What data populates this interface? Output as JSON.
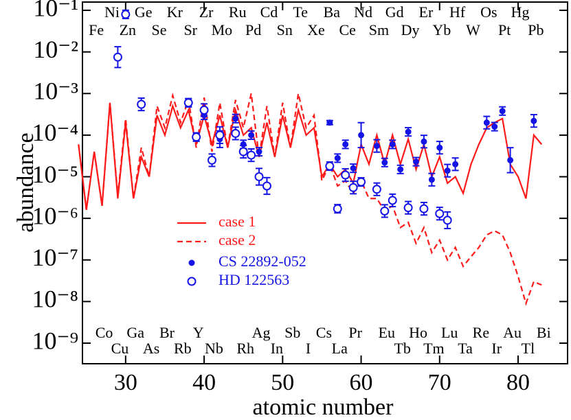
{
  "chart_data": {
    "type": "scatter-line",
    "xlabel": "atomic number",
    "ylabel": "abundance",
    "log_y": true,
    "xlim": [
      24.5,
      86.3
    ],
    "xticks": [
      30,
      40,
      50,
      60,
      70,
      80
    ],
    "ylim": [
      3.2e-10,
      0.158
    ],
    "yticks": [
      {
        "value": 1e-09,
        "label": "10⁻⁹"
      },
      {
        "value": 1e-08,
        "label": "10⁻⁸"
      },
      {
        "value": 1e-07,
        "label": "10⁻⁷"
      },
      {
        "value": 1e-06,
        "label": "10⁻⁶"
      },
      {
        "value": 1e-05,
        "label": "10⁻⁵"
      },
      {
        "value": 0.0001,
        "label": "10⁻⁴"
      },
      {
        "value": 0.001,
        "label": "10⁻³"
      },
      {
        "value": 0.01,
        "label": "10⁻²"
      },
      {
        "value": 0.1,
        "label": "10⁻¹"
      }
    ],
    "legend_position": "center-left",
    "element_labels": {
      "top_1": [
        "Ni",
        "Ge",
        "Kr",
        "Zr",
        "Ru",
        "Cd",
        "Te",
        "Ba",
        "Nd",
        "Gd",
        "Er",
        "Hf",
        "Os",
        "Hg"
      ],
      "top_2": [
        "Fe",
        "Zn",
        "Se",
        "Sr",
        "Mo",
        "Pd",
        "Sn",
        "Xe",
        "Ce",
        "Sm",
        "Dy",
        "Yb",
        "W",
        "Pt",
        "Pb"
      ],
      "bottom_1": [
        "Co",
        "Ga",
        "Br",
        "Y",
        "Ag",
        "Sb",
        "Cs",
        "Pr",
        "Eu",
        "Ho",
        "Lu",
        "Re",
        "Au",
        "Bi"
      ],
      "bottom_2": [
        "Cu",
        "As",
        "Rb",
        "Nb",
        "Rh",
        "In",
        "I",
        "La",
        "Tb",
        "Tm",
        "Ta",
        "Ir",
        "Tl"
      ]
    },
    "series": [
      {
        "name": "case 1",
        "color": "#ff1a1a",
        "style": "solid",
        "x": [
          24,
          25,
          26,
          27,
          28,
          29,
          30,
          31,
          32,
          33,
          34,
          35,
          36,
          37,
          38,
          39,
          40,
          41,
          42,
          43,
          44,
          45,
          46,
          47,
          48,
          49,
          50,
          51,
          52,
          53,
          54,
          55,
          56,
          57,
          58,
          59,
          60,
          61,
          62,
          63,
          64,
          65,
          66,
          67,
          68,
          69,
          70,
          71,
          72,
          73,
          74,
          75,
          76,
          77,
          78,
          79,
          80,
          81,
          82,
          83
        ],
        "values": [
          6e-05,
          1.6e-06,
          4e-05,
          2e-06,
          0.0006,
          3e-06,
          0.0002,
          3e-06,
          3e-05,
          1e-05,
          0.0003,
          0.0001,
          0.0005,
          0.00015,
          0.0004,
          6e-05,
          0.0003,
          6e-05,
          0.0003,
          5e-05,
          0.0004,
          0.0001,
          0.00015,
          3e-05,
          0.0002,
          3e-05,
          0.0003,
          5e-05,
          0.0004,
          0.0001,
          0.00015,
          1e-05,
          2e-05,
          1e-05,
          1.5e-05,
          7e-06,
          6e-05,
          2e-05,
          0.0001,
          2e-05,
          0.0001,
          2e-05,
          8e-05,
          1.5e-05,
          6e-05,
          1e-05,
          3e-05,
          7e-06,
          1e-05,
          4e-06,
          2e-05,
          6e-05,
          0.00015,
          0.0002,
          0.00025,
          2e-05,
          1e-05,
          3e-06,
          0.0001,
          6e-05
        ]
      },
      {
        "name": "case 2",
        "color": "#ff1a1a",
        "style": "dashed",
        "x": [
          24,
          25,
          26,
          27,
          28,
          29,
          30,
          31,
          32,
          33,
          34,
          35,
          36,
          37,
          38,
          39,
          40,
          41,
          42,
          43,
          44,
          45,
          46,
          47,
          48,
          49,
          50,
          51,
          52,
          53,
          54,
          55,
          56,
          57,
          58,
          59,
          60,
          61,
          62,
          63,
          64,
          65,
          66,
          67,
          68,
          69,
          70,
          71,
          72,
          73,
          74,
          75,
          76,
          77,
          78,
          79,
          80,
          81,
          82,
          83
        ],
        "values": [
          6e-05,
          1.6e-06,
          4e-05,
          2e-06,
          0.0006,
          3.5e-06,
          0.00025,
          3e-06,
          5e-05,
          1e-05,
          0.0005,
          0.00015,
          0.0009,
          0.0002,
          0.0007,
          5e-05,
          0.0008,
          4e-05,
          0.0006,
          5e-05,
          0.0007,
          0.00015,
          0.001,
          3e-05,
          0.0005,
          3e-05,
          0.0006,
          5e-05,
          0.001,
          0.00015,
          0.0003,
          8e-06,
          2e-05,
          6e-06,
          8e-06,
          4e-06,
          8e-06,
          3e-06,
          3e-06,
          1.5e-06,
          2e-06,
          6e-07,
          8e-07,
          2.5e-07,
          6e-07,
          1.5e-07,
          3e-07,
          1e-07,
          2e-07,
          7e-08,
          1.2e-07,
          2e-07,
          4e-07,
          5e-07,
          4e-07,
          1.5e-07,
          4e-08,
          9e-09,
          3e-08,
          2.5e-08
        ]
      },
      {
        "name": "CS 22892-052",
        "color": "#1414e6",
        "marker": "filled",
        "x": [
          38,
          39,
          40,
          42,
          44,
          45,
          46,
          47,
          56,
          57,
          58,
          59,
          60,
          62,
          63,
          64,
          65,
          66,
          67,
          68,
          69,
          70,
          71,
          72,
          76,
          77,
          78,
          79,
          82
        ],
        "values": [
          0.0006,
          9e-05,
          0.0003,
          8e-05,
          0.00025,
          6e-05,
          0.0001,
          4e-05,
          0.0002,
          2.8e-05,
          6e-05,
          1.6e-05,
          0.0001,
          5.5e-05,
          2.2e-05,
          6e-05,
          1.5e-05,
          0.00012,
          2.3e-05,
          7e-05,
          8.5e-06,
          5e-05,
          1.4e-05,
          2e-05,
          0.0002,
          0.00016,
          0.00038,
          2.5e-05,
          0.00022
        ],
        "errors_dex": [
          0.1,
          0.1,
          0.1,
          0.2,
          0.1,
          0.1,
          0.1,
          0.1,
          0.05,
          0.1,
          0.1,
          0.1,
          0.3,
          0.15,
          0.1,
          0.1,
          0.1,
          0.1,
          0.1,
          0.15,
          0.15,
          0.15,
          0.15,
          0.15,
          0.15,
          0.1,
          0.1,
          0.3,
          0.15
        ]
      },
      {
        "name": "HD 122563",
        "color": "#1414e6",
        "marker": "open",
        "x": [
          29,
          30,
          32,
          38,
          39,
          40,
          41,
          42,
          44,
          45,
          46,
          47,
          48,
          56,
          57,
          58,
          59,
          60,
          62,
          63,
          64,
          66,
          68,
          70,
          71
        ],
        "values": [
          0.0075,
          0.08,
          0.00055,
          0.0006,
          9e-05,
          0.0004,
          2.5e-05,
          0.0001,
          0.00011,
          4e-05,
          3.3e-05,
          1e-05,
          6e-06,
          1.8e-05,
          1.7e-06,
          1.1e-05,
          5.5e-06,
          7.5e-06,
          5e-06,
          1.5e-06,
          2.7e-06,
          1.8e-06,
          1.7e-06,
          1.3e-06,
          9e-07
        ],
        "errors_dex": [
          0.25,
          0.1,
          0.15,
          0.1,
          0.1,
          0.15,
          0.15,
          0.2,
          0.15,
          0.15,
          0.15,
          0.2,
          0.2,
          0.1,
          0.1,
          0.15,
          0.15,
          0.1,
          0.15,
          0.15,
          0.15,
          0.15,
          0.15,
          0.15,
          0.2
        ]
      }
    ]
  }
}
